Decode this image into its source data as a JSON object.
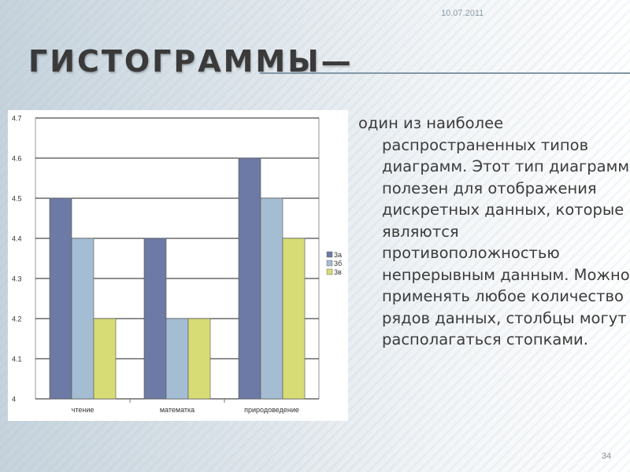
{
  "slide": {
    "date": "10.07.2011",
    "title": "ГИСТОГРАММЫ—",
    "body": "один из наиболее распространенных типов диаграмм. Этот тип диаграмм полезен для отображения дискретных данных, которые являются противоположностью непрерывным данным. Можно применять любое количество рядов данных, столбцы могут располагаться стопками.",
    "page_number": "34"
  },
  "chart_data": {
    "type": "bar",
    "categories": [
      "чтение",
      "математка",
      "природоведение"
    ],
    "series": [
      {
        "name": "3а",
        "values": [
          4.5,
          4.4,
          4.6
        ],
        "color": "#6d7aa5"
      },
      {
        "name": "3б",
        "values": [
          4.4,
          4.2,
          4.5
        ],
        "color": "#a4bdd3"
      },
      {
        "name": "3в",
        "values": [
          4.2,
          4.2,
          4.4
        ],
        "color": "#d7dc74"
      }
    ],
    "ylim": [
      4,
      4.7
    ],
    "yticks": [
      "4",
      "4.1",
      "4.2",
      "4.3",
      "4.4",
      "4.5",
      "4.6",
      "4.7"
    ],
    "grid": true,
    "legend": "right"
  }
}
